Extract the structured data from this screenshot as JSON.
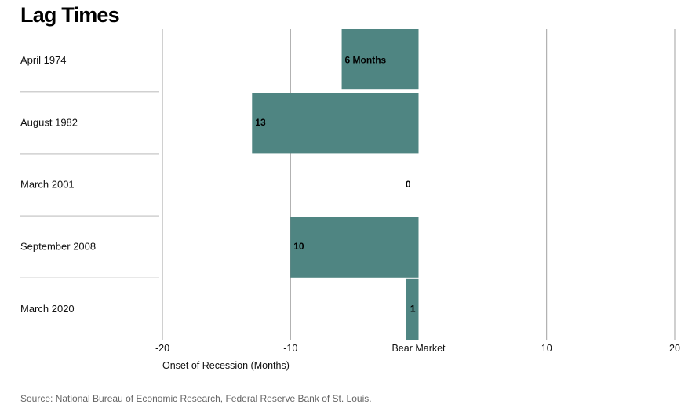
{
  "title": "Lag Times",
  "source": "Source: National Bureau of Economic Research, Federal Reserve Bank of St. Louis.",
  "colors": {
    "bar": "#4f8582",
    "grid": "#888888",
    "separator": "#d0d0d0"
  },
  "chart_data": {
    "type": "bar",
    "orientation": "horizontal",
    "categories": [
      "April 1974",
      "August 1982",
      "March 2001",
      "September 2008",
      "March 2020"
    ],
    "values": [
      -6,
      -13,
      0,
      -10,
      -1
    ],
    "data_labels": [
      "6 Months",
      "13",
      "0",
      "10",
      "1"
    ],
    "xlabel": "Onset of Recession (Months)",
    "xlim": [
      -20,
      20
    ],
    "x_ticks": [
      {
        "value": -20,
        "label": "-20"
      },
      {
        "value": -10,
        "label": "-10"
      },
      {
        "value": 0,
        "label": "Bear Market"
      },
      {
        "value": 10,
        "label": "10"
      },
      {
        "value": 20,
        "label": "20"
      }
    ],
    "grid": true
  }
}
